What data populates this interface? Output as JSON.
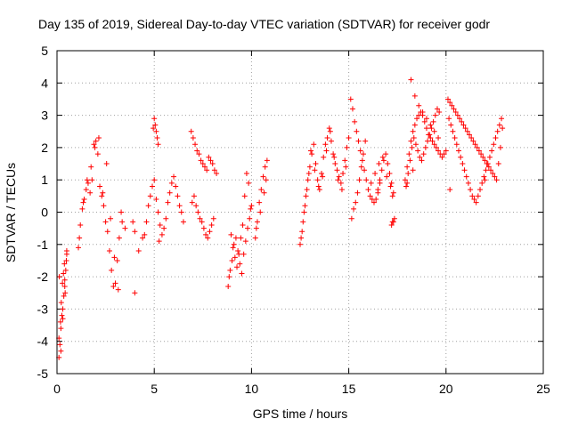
{
  "chart_data": {
    "type": "scatter",
    "title": "Day 135 of 2019, Sidereal Day-to-day VTEC variation (SDTVAR) for receiver godr",
    "xlabel": "GPS time / hours",
    "ylabel": "SDTVAR / TECUs",
    "xlim": [
      0,
      25
    ],
    "ylim": [
      -5,
      5
    ],
    "xticks": [
      0,
      5,
      10,
      15,
      20,
      25
    ],
    "yticks": [
      -5,
      -4,
      -3,
      -2,
      -1,
      0,
      1,
      2,
      3,
      4,
      5
    ],
    "xtick_labels": [
      "0",
      "5",
      "10",
      "15",
      "20",
      "25"
    ],
    "ytick_labels": [
      "-5",
      "-4",
      "-3",
      "-2",
      "-1",
      "0",
      "1",
      "2",
      "3",
      "4",
      "5"
    ],
    "grid": true,
    "marker": "+",
    "color": "#ff0000",
    "series": [
      {
        "name": "SDTVAR",
        "x": [
          0.1,
          0.15,
          0.2,
          0.25,
          0.3,
          0.35,
          0.4,
          0.45,
          0.5,
          0.12,
          0.18,
          0.22,
          0.28,
          0.33,
          0.38,
          0.42,
          0.48,
          0.1,
          0.2,
          0.3,
          0.4,
          0.5,
          1.1,
          1.2,
          1.3,
          1.4,
          1.5,
          1.6,
          1.7,
          1.8,
          1.9,
          2.0,
          2.1,
          2.2,
          2.3,
          2.4,
          2.5,
          2.6,
          2.7,
          2.8,
          2.9,
          3.0,
          3.1,
          3.2,
          3.3,
          1.15,
          1.35,
          1.55,
          1.75,
          1.95,
          2.15,
          2.35,
          2.55,
          2.75,
          2.95,
          3.15,
          3.35,
          3.5,
          3.9,
          4.0,
          4.2,
          4.4,
          4.5,
          4.6,
          4.7,
          4.8,
          4.9,
          5.0,
          5.1,
          5.2,
          5.3,
          5.4,
          5.5,
          5.6,
          5.7,
          5.8,
          5.9,
          6.0,
          6.1,
          6.2,
          6.3,
          6.4,
          6.5,
          5.0,
          5.05,
          5.1,
          5.15,
          5.2,
          4.95,
          5.25,
          6.9,
          7.0,
          7.1,
          7.2,
          7.3,
          7.4,
          7.5,
          7.6,
          7.7,
          7.8,
          7.9,
          8.0,
          8.1,
          8.2,
          6.95,
          7.05,
          7.15,
          7.25,
          7.35,
          7.45,
          7.55,
          7.65,
          7.75,
          7.85,
          7.95,
          8.05,
          8.8,
          8.9,
          9.0,
          9.1,
          9.2,
          9.3,
          9.4,
          9.5,
          9.6,
          9.7,
          9.8,
          9.9,
          10.0,
          8.85,
          8.95,
          9.05,
          9.15,
          9.25,
          9.35,
          9.45,
          9.55,
          9.65,
          9.75,
          9.85,
          9.95,
          10.2,
          10.3,
          10.4,
          10.5,
          10.6,
          10.7,
          10.8,
          10.25,
          10.45,
          10.65,
          10.75,
          12.5,
          12.6,
          12.7,
          12.8,
          12.9,
          13.0,
          13.1,
          13.2,
          13.3,
          13.4,
          13.5,
          13.6,
          13.7,
          13.8,
          13.9,
          14.0,
          14.1,
          14.2,
          14.3,
          14.4,
          14.5,
          14.6,
          14.7,
          14.8,
          14.9,
          15.0,
          12.55,
          12.65,
          12.75,
          12.85,
          12.95,
          13.05,
          13.25,
          13.45,
          13.65,
          13.85,
          14.05,
          14.25,
          14.45,
          14.65,
          14.85,
          15.1,
          15.2,
          15.3,
          15.4,
          15.5,
          15.6,
          15.7,
          15.8,
          15.9,
          16.0,
          16.1,
          16.2,
          16.3,
          16.4,
          16.5,
          16.6,
          16.7,
          16.8,
          16.9,
          17.0,
          17.1,
          17.2,
          17.3,
          15.15,
          15.25,
          15.35,
          15.45,
          15.55,
          15.65,
          15.75,
          15.85,
          16.15,
          16.35,
          16.55,
          16.75,
          16.95,
          17.15,
          17.25,
          17.3,
          17.35,
          17.2,
          17.25,
          17.9,
          18.0,
          18.1,
          18.2,
          18.3,
          18.4,
          18.5,
          18.6,
          18.7,
          18.8,
          18.9,
          19.0,
          19.1,
          19.2,
          19.3,
          19.4,
          19.5,
          19.6,
          19.7,
          19.8,
          19.9,
          20.0,
          17.95,
          18.05,
          18.15,
          18.25,
          18.35,
          18.45,
          18.55,
          18.65,
          18.75,
          18.85,
          18.95,
          19.05,
          19.15,
          19.25,
          19.35,
          19.45,
          19.55,
          19.65,
          18.2,
          18.4,
          18.6,
          18.8,
          19.0,
          19.2,
          19.4,
          19.6,
          20.1,
          20.2,
          20.3,
          20.4,
          20.5,
          20.6,
          20.7,
          20.8,
          20.9,
          21.0,
          21.1,
          21.2,
          21.3,
          21.4,
          21.5,
          21.6,
          21.7,
          21.8,
          21.9,
          22.0,
          22.1,
          22.2,
          22.3,
          22.4,
          22.5,
          22.6,
          22.7,
          22.8,
          22.9,
          20.15,
          20.25,
          20.35,
          20.45,
          20.55,
          20.65,
          20.75,
          20.85,
          20.95,
          21.05,
          21.15,
          21.25,
          21.35,
          21.45,
          21.55,
          21.65,
          21.75,
          21.85,
          21.95,
          22.05,
          22.15,
          22.25,
          22.35,
          22.45,
          22.55,
          22.65,
          22.75,
          22.85,
          18.0,
          18.3,
          20.2,
          22.0,
          16.5,
          16.6,
          4.0
        ],
        "y": [
          -4.5,
          -4.1,
          -3.6,
          -3.2,
          -3.0,
          -2.6,
          -2.3,
          -1.8,
          -1.3,
          -2.0,
          -3.4,
          -2.8,
          -2.2,
          -1.9,
          -1.6,
          -2.5,
          -1.5,
          -3.9,
          -4.3,
          -3.3,
          -2.1,
          -1.2,
          -1.1,
          -0.4,
          0.1,
          0.4,
          0.7,
          0.9,
          0.6,
          1.0,
          2.1,
          2.2,
          1.8,
          0.8,
          0.5,
          0.2,
          -0.3,
          -0.6,
          -1.2,
          -1.8,
          -2.3,
          -2.2,
          -1.5,
          -0.8,
          0.0,
          -0.8,
          0.3,
          1.0,
          1.4,
          2.0,
          2.3,
          0.6,
          1.5,
          -0.2,
          -1.4,
          -2.4,
          -0.3,
          -0.5,
          -0.3,
          -2.5,
          -1.2,
          -0.8,
          -0.7,
          -0.3,
          0.2,
          0.5,
          0.8,
          1.0,
          0.4,
          0.0,
          -0.4,
          -0.7,
          -0.5,
          -0.2,
          0.3,
          0.6,
          0.9,
          1.1,
          0.8,
          0.5,
          0.2,
          0.0,
          -0.3,
          2.9,
          2.7,
          2.5,
          2.3,
          2.1,
          2.6,
          -0.9,
          2.5,
          2.3,
          2.1,
          1.9,
          1.8,
          1.6,
          1.5,
          1.4,
          1.3,
          1.7,
          1.6,
          1.5,
          1.3,
          1.2,
          0.3,
          0.5,
          0.2,
          0.0,
          -0.2,
          -0.3,
          -0.5,
          -0.7,
          -0.8,
          -0.6,
          -0.4,
          -0.2,
          -2.3,
          -1.8,
          -1.5,
          -1.0,
          -0.8,
          -1.2,
          -1.6,
          -1.9,
          -1.3,
          -0.9,
          -0.5,
          -0.2,
          0.2,
          -2.0,
          -0.7,
          -1.1,
          -1.4,
          -1.7,
          -1.3,
          -0.8,
          -0.4,
          0.5,
          1.2,
          0.9,
          0.1,
          -0.8,
          -0.3,
          0.3,
          0.7,
          1.1,
          1.4,
          1.6,
          -0.5,
          0.0,
          0.6,
          1.0,
          -1.0,
          -0.6,
          0.0,
          0.5,
          1.0,
          1.4,
          1.8,
          2.1,
          1.5,
          1.0,
          0.7,
          1.2,
          1.7,
          2.1,
          2.3,
          2.6,
          2.2,
          1.8,
          1.5,
          1.3,
          1.1,
          0.9,
          1.2,
          1.6,
          2.0,
          2.3,
          -0.8,
          -0.3,
          0.2,
          0.7,
          1.2,
          1.9,
          1.3,
          0.8,
          1.1,
          1.9,
          2.5,
          1.7,
          1.0,
          0.7,
          1.4,
          3.5,
          3.2,
          2.8,
          2.5,
          2.2,
          1.9,
          1.6,
          1.3,
          1.0,
          0.7,
          0.5,
          0.4,
          0.3,
          0.4,
          0.7,
          1.0,
          1.3,
          1.6,
          1.8,
          1.5,
          1.2,
          0.9,
          0.6,
          -0.2,
          0.1,
          0.3,
          0.6,
          1.0,
          1.4,
          1.8,
          2.2,
          0.9,
          1.2,
          1.5,
          1.7,
          1.1,
          0.8,
          0.5,
          -0.3,
          -0.2,
          -0.4,
          -0.3,
          1.0,
          1.4,
          1.8,
          2.2,
          2.5,
          2.7,
          2.9,
          3.0,
          3.1,
          3.0,
          2.8,
          2.6,
          2.4,
          2.3,
          2.2,
          2.1,
          2.0,
          1.9,
          1.8,
          1.7,
          1.8,
          1.9,
          0.8,
          1.2,
          1.6,
          2.0,
          2.3,
          2.1,
          1.9,
          1.7,
          1.6,
          1.8,
          2.0,
          2.2,
          2.4,
          2.6,
          2.8,
          3.0,
          3.2,
          3.1,
          4.1,
          3.6,
          3.3,
          3.1,
          2.9,
          2.7,
          2.5,
          2.3,
          3.5,
          3.4,
          3.3,
          3.2,
          3.1,
          3.0,
          2.9,
          2.8,
          2.7,
          2.6,
          2.5,
          2.4,
          2.3,
          2.2,
          2.1,
          2.0,
          1.9,
          1.8,
          1.7,
          1.6,
          1.5,
          1.4,
          1.3,
          1.2,
          1.1,
          1.0,
          1.5,
          2.0,
          2.6,
          2.9,
          2.7,
          2.5,
          2.3,
          2.1,
          1.9,
          1.7,
          1.5,
          1.3,
          1.1,
          0.9,
          0.7,
          0.5,
          0.4,
          0.3,
          0.5,
          0.7,
          0.9,
          1.1,
          1.3,
          1.5,
          1.7,
          1.9,
          2.1,
          2.3,
          2.5,
          2.7,
          2.9,
          0.9,
          1.3,
          0.7,
          1.0,
          0.6,
          0.9,
          -0.6
        ]
      }
    ]
  }
}
